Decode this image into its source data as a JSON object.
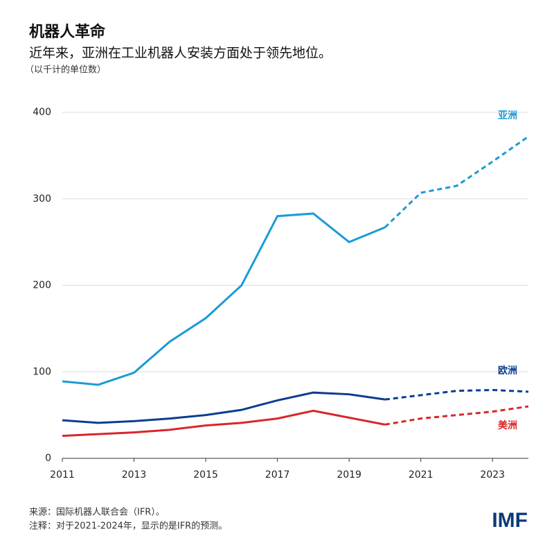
{
  "chart_data": {
    "type": "line",
    "title": "机器人革命",
    "subtitle": "近年来，亚洲在工业机器人安装方面处于领先地位。",
    "y_label": "（以千计的单位数）",
    "source": "来源：国际机器人联合会（IFR）。",
    "note": "注释：对于2021-2024年，显示的是IFR的预测。",
    "logo": "IMF",
    "x": [
      2011,
      2012,
      2013,
      2014,
      2015,
      2016,
      2017,
      2018,
      2019,
      2020,
      2021,
      2022,
      2023,
      2024
    ],
    "forecast_start": 2020,
    "series": [
      {
        "name": "亚洲",
        "color": "#1a9bd7",
        "values": [
          89,
          85,
          99,
          135,
          162,
          200,
          280,
          283,
          250,
          267,
          307,
          315,
          343,
          372
        ]
      },
      {
        "name": "欧洲",
        "color": "#0a3d8f",
        "values": [
          44,
          41,
          43,
          46,
          50,
          56,
          67,
          76,
          74,
          68,
          73,
          78,
          79,
          77
        ]
      },
      {
        "name": "美洲",
        "color": "#d7262b",
        "values": [
          26,
          28,
          30,
          33,
          38,
          41,
          46,
          55,
          47,
          39,
          46,
          50,
          54,
          60
        ]
      }
    ],
    "xlim": [
      2011,
      2024
    ],
    "xticks": [
      2011,
      2013,
      2015,
      2017,
      2019,
      2021,
      2023
    ],
    "ylim": [
      0,
      400
    ],
    "yticks": [
      0,
      100,
      200,
      300,
      400
    ],
    "grid": true
  }
}
